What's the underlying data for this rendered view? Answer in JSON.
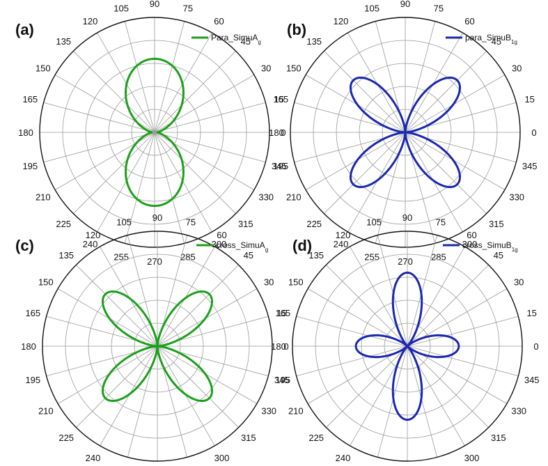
{
  "chart_data": [
    {
      "type": "polar-line",
      "panel_label": "(a)",
      "legend": {
        "label": "Para_SimuA",
        "subscript": "g",
        "placement": "top-right"
      },
      "color": "#1aa01a",
      "rlim": [
        0,
        1
      ],
      "angle_ticks": [
        "0",
        "15",
        "30",
        "45",
        "60",
        "75",
        "90",
        "105",
        "120",
        "135",
        "150",
        "165",
        "180",
        "195",
        "210",
        "225",
        "240",
        "255",
        "270",
        "285",
        "300",
        "315",
        "330",
        "345"
      ],
      "series": [
        {
          "pattern": "sin2",
          "theta_deg": [
            0,
            15,
            30,
            45,
            60,
            75,
            90,
            105,
            120,
            135,
            150,
            165,
            180
          ],
          "r": [
            0.04,
            0.1,
            0.28,
            0.52,
            0.75,
            0.93,
            1.0,
            0.93,
            0.75,
            0.52,
            0.28,
            0.1,
            0.04
          ]
        }
      ]
    },
    {
      "type": "polar-line",
      "panel_label": "(b)",
      "legend": {
        "label": "para_SimuB",
        "subscript": "1g",
        "placement": "top-right"
      },
      "color": "#1a27b0",
      "rlim": [
        0,
        1
      ],
      "angle_ticks": [
        "0",
        "15",
        "30",
        "45",
        "60",
        "75",
        "90",
        "105",
        "120",
        "135",
        "150",
        "165",
        "180",
        "195",
        "210",
        "225",
        "240",
        "255",
        "270",
        "285",
        "300",
        "315",
        "330",
        "345"
      ],
      "series": [
        {
          "pattern": "sin2x2",
          "theta_deg": [
            0,
            15,
            30,
            45,
            60,
            75,
            90
          ],
          "r": [
            0.0,
            0.5,
            0.87,
            1.0,
            0.87,
            0.5,
            0.0
          ]
        }
      ]
    },
    {
      "type": "polar-line",
      "panel_label": "(c)",
      "legend": {
        "label": "cross_SimuA",
        "subscript": "g",
        "placement": "top-right"
      },
      "color": "#1aa01a",
      "rlim": [
        0,
        1
      ],
      "angle_ticks": [
        "0",
        "15",
        "30",
        "45",
        "60",
        "75",
        "90",
        "105",
        "120",
        "135",
        "150",
        "165",
        "180",
        "195",
        "210",
        "225",
        "240",
        "255",
        "270",
        "285",
        "300",
        "315",
        "330",
        "345"
      ],
      "series": [
        {
          "pattern": "sin2x2",
          "theta_deg": [
            0,
            15,
            30,
            45,
            60,
            75,
            90
          ],
          "r": [
            0.0,
            0.5,
            0.87,
            1.0,
            0.87,
            0.5,
            0.0
          ]
        }
      ]
    },
    {
      "type": "polar-line",
      "panel_label": "(d)",
      "legend": {
        "label": "cross_SimuB",
        "subscript": "1g",
        "placement": "top-right"
      },
      "color": "#1a27b0",
      "rlim": [
        0,
        1
      ],
      "angle_ticks": [
        "0",
        "15",
        "30",
        "45",
        "60",
        "75",
        "90",
        "105",
        "120",
        "135",
        "150",
        "165",
        "180",
        "195",
        "210",
        "225",
        "240",
        "255",
        "270",
        "285",
        "300",
        "315",
        "330",
        "345"
      ],
      "series": [
        {
          "pattern": "cos2x2",
          "theta_deg": [
            0,
            15,
            30,
            45,
            60,
            75,
            90
          ],
          "r": [
            0.7,
            0.35,
            0.0,
            0.0,
            0.0,
            0.5,
            1.0
          ]
        }
      ]
    }
  ]
}
